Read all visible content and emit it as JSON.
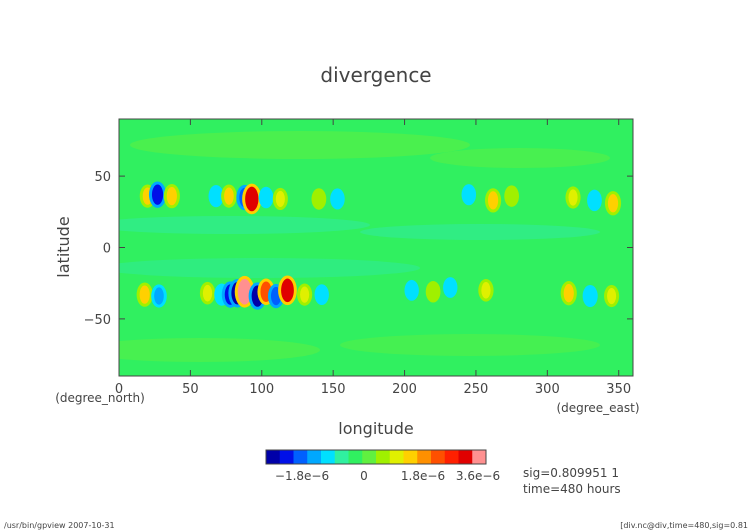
{
  "chart_data": {
    "type": "heatmap",
    "title": "divergence",
    "xlabel": "longitude",
    "ylabel": "latitude",
    "x_unit": "(degree_east)",
    "y_unit": "(degree_north)",
    "xlim": [
      0,
      360
    ],
    "ylim": [
      -90,
      90
    ],
    "x_ticks": [
      0,
      50,
      100,
      150,
      200,
      250,
      300,
      350
    ],
    "y_ticks": [
      -50,
      0,
      50
    ],
    "x_tick_labels": [
      "0",
      "50",
      "100",
      "150",
      "200",
      "250",
      "300",
      "350"
    ],
    "y_tick_labels": [
      "−50",
      "0",
      "50"
    ],
    "colorbar": {
      "tick_labels": [
        "−1.8e−6",
        "0",
        "1.8e−6",
        "3.6e−6"
      ],
      "tick_values": [
        -1.8e-06,
        0,
        1.8e-06,
        3.6e-06
      ],
      "colors": [
        "#0000a8",
        "#0010e8",
        "#0060ff",
        "#00a8ff",
        "#00e0ff",
        "#30f0a0",
        "#30f060",
        "#60f040",
        "#a0f000",
        "#e0f000",
        "#ffd000",
        "#ff9000",
        "#ff5000",
        "#ff2000",
        "#e00000",
        "#ff9090"
      ]
    },
    "features": [
      {
        "lon": 20,
        "lat": 36,
        "value": 1.5e-06
      },
      {
        "lon": 27,
        "lat": 37,
        "value": -2.4e-06
      },
      {
        "lon": 37,
        "lat": 36,
        "value": 1.8e-06
      },
      {
        "lon": 68,
        "lat": 36,
        "value": -1.2e-06
      },
      {
        "lon": 77,
        "lat": 36,
        "value": 1.5e-06
      },
      {
        "lon": 88,
        "lat": 35,
        "value": -2.1e-06
      },
      {
        "lon": 93,
        "lat": 34,
        "value": 3.6e-06
      },
      {
        "lon": 103,
        "lat": 35,
        "value": -1e-06
      },
      {
        "lon": 113,
        "lat": 34,
        "value": 1.2e-06
      },
      {
        "lon": 140,
        "lat": 34,
        "value": 1e-06
      },
      {
        "lon": 153,
        "lat": 34,
        "value": -9e-07
      },
      {
        "lon": 245,
        "lat": 37,
        "value": -9e-07
      },
      {
        "lon": 262,
        "lat": 33,
        "value": 1.8e-06
      },
      {
        "lon": 275,
        "lat": 36,
        "value": 1e-06
      },
      {
        "lon": 318,
        "lat": 35,
        "value": 1.2e-06
      },
      {
        "lon": 333,
        "lat": 33,
        "value": -1e-06
      },
      {
        "lon": 346,
        "lat": 31,
        "value": 1.8e-06
      },
      {
        "lon": 18,
        "lat": -33,
        "value": 1.8e-06
      },
      {
        "lon": 28,
        "lat": -34,
        "value": -1.5e-06
      },
      {
        "lon": 62,
        "lat": -32,
        "value": 1.3e-06
      },
      {
        "lon": 72,
        "lat": -33,
        "value": -1.2e-06
      },
      {
        "lon": 78,
        "lat": -33,
        "value": -2.4e-06
      },
      {
        "lon": 83,
        "lat": -32,
        "value": -3e-06
      },
      {
        "lon": 88,
        "lat": -31,
        "value": 3.9e-06
      },
      {
        "lon": 97,
        "lat": -34,
        "value": -2.7e-06
      },
      {
        "lon": 103,
        "lat": -31,
        "value": 2.4e-06
      },
      {
        "lon": 110,
        "lat": -34,
        "value": -1.8e-06
      },
      {
        "lon": 118,
        "lat": -30,
        "value": 3.3e-06
      },
      {
        "lon": 130,
        "lat": -33,
        "value": 1.2e-06
      },
      {
        "lon": 142,
        "lat": -33,
        "value": -8e-07
      },
      {
        "lon": 205,
        "lat": -30,
        "value": -8e-07
      },
      {
        "lon": 220,
        "lat": -31,
        "value": 1e-06
      },
      {
        "lon": 232,
        "lat": -28,
        "value": -8e-07
      },
      {
        "lon": 257,
        "lat": -30,
        "value": 1.3e-06
      },
      {
        "lon": 315,
        "lat": -32,
        "value": 1.8e-06
      },
      {
        "lon": 330,
        "lat": -34,
        "value": -1.2e-06
      },
      {
        "lon": 345,
        "lat": -34,
        "value": 1.2e-06
      }
    ]
  },
  "annotations": {
    "sig": "sig=0.809951 1",
    "time": "time=480 hours",
    "footer_left": "/usr/bin/gpview  2007-10-31",
    "footer_right": "[div.nc@div,time=480,sig=0.81"
  }
}
